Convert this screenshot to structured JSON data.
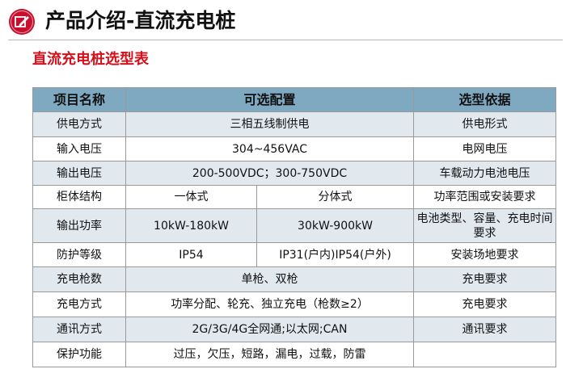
{
  "header": {
    "title": "产品介绍-直流充电桩",
    "logo_icon": "pencil-square-icon",
    "accent_color": "#c8102e"
  },
  "subtitle": "直流充电桩选型表",
  "table": {
    "headers": [
      "项目名称",
      "可选配置",
      "选型依据"
    ],
    "rows": [
      {
        "item": "供电方式",
        "config": "三相五线制供电",
        "basis": "供电形式"
      },
      {
        "item": "输入电压",
        "config": "304~456VAC",
        "basis": "电网电压"
      },
      {
        "item": "输出电压",
        "config": "200-500VDC；300-750VDC",
        "basis": "车载动力电池电压"
      },
      {
        "item": "柜体结构",
        "config_a": "一体式",
        "config_b": "分体式",
        "basis": "功率范围或安装要求"
      },
      {
        "item": "输出功率",
        "config_a": "10kW-180kW",
        "config_b": "30kW-900kW",
        "basis": "电池类型、容量、充电时间要求"
      },
      {
        "item": "防护等级",
        "config_a": "IP54",
        "config_b": "IP31(户内)IP54(户外)",
        "basis": "安装场地要求"
      },
      {
        "item": "充电枪数",
        "config": "单枪、双枪",
        "basis": "充电要求"
      },
      {
        "item": "充电方式",
        "config": "功率分配、轮充、独立充电（枪数≥2）",
        "basis": "充电要求"
      },
      {
        "item": "通讯方式",
        "config": "2G/3G/4G全网通;以太网;CAN",
        "basis": "通讯要求"
      },
      {
        "item": "保护功能",
        "config": "过压，欠压，短路，漏电，过载，防雷",
        "basis": ""
      }
    ]
  }
}
